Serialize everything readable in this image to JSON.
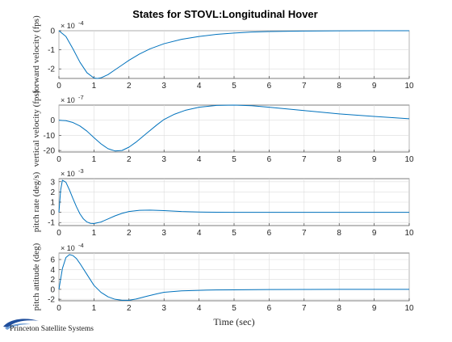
{
  "title": "States for STOVL:Longitudinal Hover",
  "logo_text": "Princeton Satellite Systems",
  "colors": {
    "line": "#0072bd",
    "grid": "#dcdcdc",
    "axis": "#262626",
    "logo": "#1f4e9c"
  },
  "chart_data": [
    {
      "type": "line",
      "ylabel": "forward velocity (fps)",
      "exponent": "× 10",
      "exponent_power": "-4",
      "xlim": [
        0,
        10
      ],
      "ylim": [
        -2.5,
        0
      ],
      "yticks": [
        -2,
        -1,
        0
      ],
      "xticks": [
        0,
        1,
        2,
        3,
        4,
        5,
        6,
        7,
        8,
        9,
        10
      ],
      "grid": true,
      "x": [
        0,
        0.2,
        0.4,
        0.6,
        0.8,
        1.0,
        1.1,
        1.2,
        1.4,
        1.6,
        1.8,
        2.0,
        2.3,
        2.6,
        3.0,
        3.5,
        4.0,
        4.5,
        5.0,
        5.5,
        6.0,
        7.0,
        8.0,
        9.0,
        10.0
      ],
      "series": [
        {
          "values": [
            0,
            -0.3,
            -0.95,
            -1.65,
            -2.2,
            -2.48,
            -2.5,
            -2.47,
            -2.3,
            -2.05,
            -1.8,
            -1.55,
            -1.22,
            -0.95,
            -0.68,
            -0.45,
            -0.3,
            -0.19,
            -0.12,
            -0.07,
            -0.04,
            -0.015,
            -0.005,
            0,
            0
          ]
        }
      ]
    },
    {
      "type": "line",
      "ylabel": "vertical velocity (fps)",
      "exponent": "× 10",
      "exponent_power": "-7",
      "xlim": [
        0,
        10
      ],
      "ylim": [
        -21,
        10
      ],
      "yticks": [
        -20,
        -10,
        0
      ],
      "xticks": [
        0,
        1,
        2,
        3,
        4,
        5,
        6,
        7,
        8,
        9,
        10
      ],
      "grid": true,
      "x": [
        0,
        0.2,
        0.4,
        0.6,
        0.8,
        1.0,
        1.2,
        1.4,
        1.6,
        1.8,
        2.0,
        2.2,
        2.5,
        2.8,
        3.0,
        3.3,
        3.6,
        4.0,
        4.5,
        5.0,
        5.5,
        6.0,
        7.0,
        8.0,
        9.0,
        10.0
      ],
      "series": [
        {
          "values": [
            0,
            -0.3,
            -1.5,
            -3.8,
            -7.2,
            -11.5,
            -15.6,
            -18.8,
            -20.3,
            -20.0,
            -17.8,
            -14.5,
            -8.7,
            -3.0,
            0.5,
            4.0,
            6.5,
            8.6,
            9.8,
            10.0,
            9.6,
            8.6,
            6.4,
            4.2,
            2.5,
            1.0
          ]
        }
      ]
    },
    {
      "type": "line",
      "ylabel": "pitch rate (deg/s)",
      "exponent": "× 10",
      "exponent_power": "-3",
      "xlim": [
        0,
        10
      ],
      "ylim": [
        -1.3,
        3.3
      ],
      "yticks": [
        -1,
        0,
        1,
        2,
        3
      ],
      "xticks": [
        0,
        1,
        2,
        3,
        4,
        5,
        6,
        7,
        8,
        9,
        10
      ],
      "grid": true,
      "x": [
        0,
        0.05,
        0.1,
        0.2,
        0.3,
        0.4,
        0.5,
        0.6,
        0.7,
        0.8,
        0.9,
        1.0,
        1.2,
        1.4,
        1.6,
        1.8,
        2.0,
        2.3,
        2.6,
        3.0,
        3.5,
        4.0,
        4.5,
        5.0,
        6.0,
        7.0,
        8.0,
        9.0,
        10.0
      ],
      "series": [
        {
          "values": [
            0,
            2.2,
            3.15,
            2.95,
            2.2,
            1.35,
            0.55,
            -0.15,
            -0.65,
            -0.95,
            -1.08,
            -1.1,
            -0.95,
            -0.65,
            -0.35,
            -0.1,
            0.08,
            0.2,
            0.22,
            0.17,
            0.08,
            0.03,
            0.01,
            0,
            0,
            0,
            0,
            0,
            0
          ]
        }
      ]
    },
    {
      "type": "line",
      "ylabel": "pitch attitude (deg)",
      "exponent": "× 10",
      "exponent_power": "-4",
      "xlim": [
        0,
        10
      ],
      "ylim": [
        -2.3,
        7.3
      ],
      "yticks": [
        -2,
        0,
        2,
        4,
        6
      ],
      "xticks": [
        0,
        1,
        2,
        3,
        4,
        5,
        6,
        7,
        8,
        9,
        10
      ],
      "xlabel": "Time (sec)",
      "grid": true,
      "x": [
        0,
        0.1,
        0.2,
        0.3,
        0.4,
        0.5,
        0.6,
        0.8,
        1.0,
        1.2,
        1.4,
        1.6,
        1.8,
        2.0,
        2.2,
        2.5,
        2.8,
        3.0,
        3.5,
        4.0,
        4.5,
        5.0,
        6.0,
        7.0,
        8.0,
        9.0,
        10.0
      ],
      "series": [
        {
          "values": [
            0,
            4.2,
            6.4,
            7.0,
            6.8,
            6.2,
            5.2,
            3.0,
            0.8,
            -0.6,
            -1.5,
            -2.0,
            -2.2,
            -2.2,
            -1.95,
            -1.4,
            -0.9,
            -0.6,
            -0.3,
            -0.2,
            -0.12,
            -0.1,
            -0.05,
            -0.02,
            0,
            0,
            0
          ]
        }
      ]
    }
  ]
}
